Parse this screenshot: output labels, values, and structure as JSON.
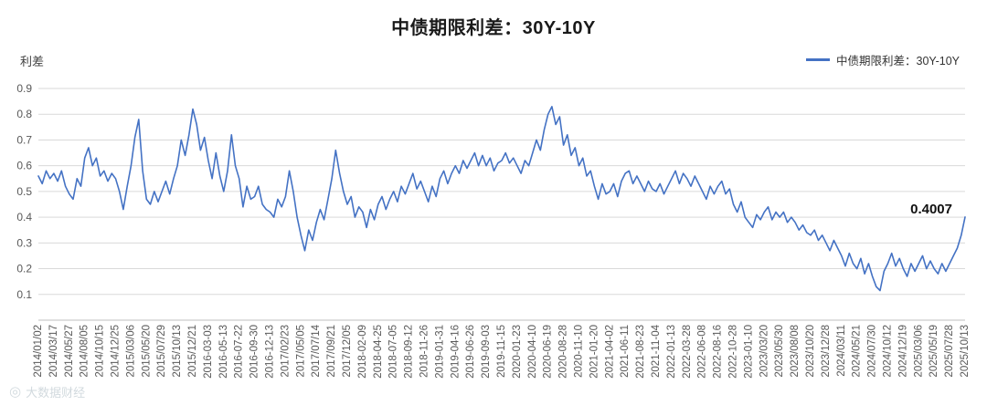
{
  "watermark": {
    "icon_glyph": "◎",
    "text": "大数据财经"
  },
  "chart_data": {
    "type": "line",
    "title": "中债期限利差：30Y-10Y",
    "xlabel": "",
    "ylabel": "利差",
    "ylim": [
      0,
      0.9
    ],
    "grid": true,
    "legend_position": "top-right",
    "grid_color": "#d9d9d9",
    "axis_line_color": "#bfbfbf",
    "axis_text_color": "#595959",
    "annotation_color": "#111111",
    "last_value_label": "0.4007",
    "y_ticks": [
      0.9,
      0.8,
      0.7,
      0.6,
      0.5,
      0.4,
      0.3,
      0.2,
      0.1
    ],
    "x_tick_labels": [
      "2014/01/02",
      "2014/03/17",
      "2014/05/27",
      "2014/08/05",
      "2014/10/15",
      "2014/12/25",
      "2015/03/06",
      "2015/05/20",
      "2015/07/29",
      "2015/10/13",
      "2015/12/21",
      "2016-03-03",
      "2016-05-13",
      "2016-07-22",
      "2016-09-30",
      "2016-12-13",
      "2017/02/23",
      "2017/05/05",
      "2017/07/14",
      "2017/09/21",
      "2017/12/05",
      "2018-02-09",
      "2018-04-25",
      "2018-07-05",
      "2018-09-12",
      "2018-11-26",
      "2019-01-31",
      "2019-04-16",
      "2019-06-26",
      "2019-09-03",
      "2019-11-15",
      "2020-01-23",
      "2020-04-10",
      "2020-06-19",
      "2020-08-28",
      "2020-11-10",
      "2021-01-20",
      "2021-04-02",
      "2021-06-11",
      "2021-08-23",
      "2021-11-04",
      "2022-01-13",
      "2022-03-28",
      "2022-06-08",
      "2022-08-16",
      "2022-10-28",
      "2023-01-10",
      "2023/03/20",
      "2023/05/30",
      "2023/08/08",
      "2023/10/20",
      "2023/12/28",
      "2024/03/11",
      "2024/05/21",
      "2024/07/30",
      "2024/10/12",
      "2024/12/19",
      "2025/03/06",
      "2025/05/19",
      "2025/07/28",
      "2025/10/13"
    ],
    "series": [
      {
        "name": "中债期限利差：30Y-10Y",
        "color": "#4472C4",
        "values": [
          0.56,
          0.53,
          0.58,
          0.55,
          0.57,
          0.54,
          0.58,
          0.52,
          0.49,
          0.47,
          0.55,
          0.52,
          0.63,
          0.67,
          0.6,
          0.63,
          0.56,
          0.58,
          0.54,
          0.57,
          0.55,
          0.5,
          0.43,
          0.52,
          0.6,
          0.71,
          0.78,
          0.58,
          0.47,
          0.45,
          0.5,
          0.46,
          0.5,
          0.54,
          0.49,
          0.55,
          0.6,
          0.7,
          0.64,
          0.72,
          0.82,
          0.76,
          0.66,
          0.71,
          0.62,
          0.55,
          0.65,
          0.56,
          0.5,
          0.58,
          0.72,
          0.6,
          0.55,
          0.44,
          0.52,
          0.47,
          0.48,
          0.52,
          0.45,
          0.43,
          0.42,
          0.4,
          0.47,
          0.44,
          0.48,
          0.58,
          0.5,
          0.4,
          0.33,
          0.27,
          0.35,
          0.31,
          0.38,
          0.43,
          0.39,
          0.47,
          0.55,
          0.66,
          0.57,
          0.5,
          0.45,
          0.48,
          0.4,
          0.44,
          0.42,
          0.36,
          0.43,
          0.39,
          0.45,
          0.48,
          0.43,
          0.47,
          0.5,
          0.46,
          0.52,
          0.49,
          0.53,
          0.57,
          0.51,
          0.54,
          0.5,
          0.46,
          0.52,
          0.48,
          0.55,
          0.58,
          0.53,
          0.57,
          0.6,
          0.57,
          0.62,
          0.59,
          0.62,
          0.65,
          0.6,
          0.64,
          0.6,
          0.63,
          0.58,
          0.61,
          0.62,
          0.65,
          0.61,
          0.63,
          0.6,
          0.57,
          0.62,
          0.6,
          0.65,
          0.7,
          0.66,
          0.74,
          0.8,
          0.83,
          0.76,
          0.79,
          0.68,
          0.72,
          0.64,
          0.67,
          0.6,
          0.63,
          0.56,
          0.58,
          0.52,
          0.47,
          0.53,
          0.49,
          0.5,
          0.53,
          0.48,
          0.54,
          0.57,
          0.58,
          0.53,
          0.56,
          0.53,
          0.5,
          0.54,
          0.51,
          0.5,
          0.53,
          0.49,
          0.52,
          0.55,
          0.58,
          0.53,
          0.57,
          0.55,
          0.52,
          0.56,
          0.53,
          0.5,
          0.47,
          0.52,
          0.49,
          0.52,
          0.54,
          0.49,
          0.51,
          0.45,
          0.42,
          0.46,
          0.4,
          0.38,
          0.36,
          0.41,
          0.39,
          0.42,
          0.44,
          0.39,
          0.42,
          0.4,
          0.42,
          0.38,
          0.4,
          0.38,
          0.35,
          0.37,
          0.34,
          0.33,
          0.35,
          0.31,
          0.33,
          0.3,
          0.27,
          0.31,
          0.28,
          0.25,
          0.21,
          0.26,
          0.22,
          0.2,
          0.24,
          0.18,
          0.22,
          0.17,
          0.13,
          0.115,
          0.19,
          0.22,
          0.26,
          0.21,
          0.24,
          0.2,
          0.17,
          0.22,
          0.19,
          0.22,
          0.25,
          0.2,
          0.23,
          0.2,
          0.18,
          0.22,
          0.19,
          0.22,
          0.25,
          0.28,
          0.33,
          0.4007
        ]
      }
    ]
  }
}
